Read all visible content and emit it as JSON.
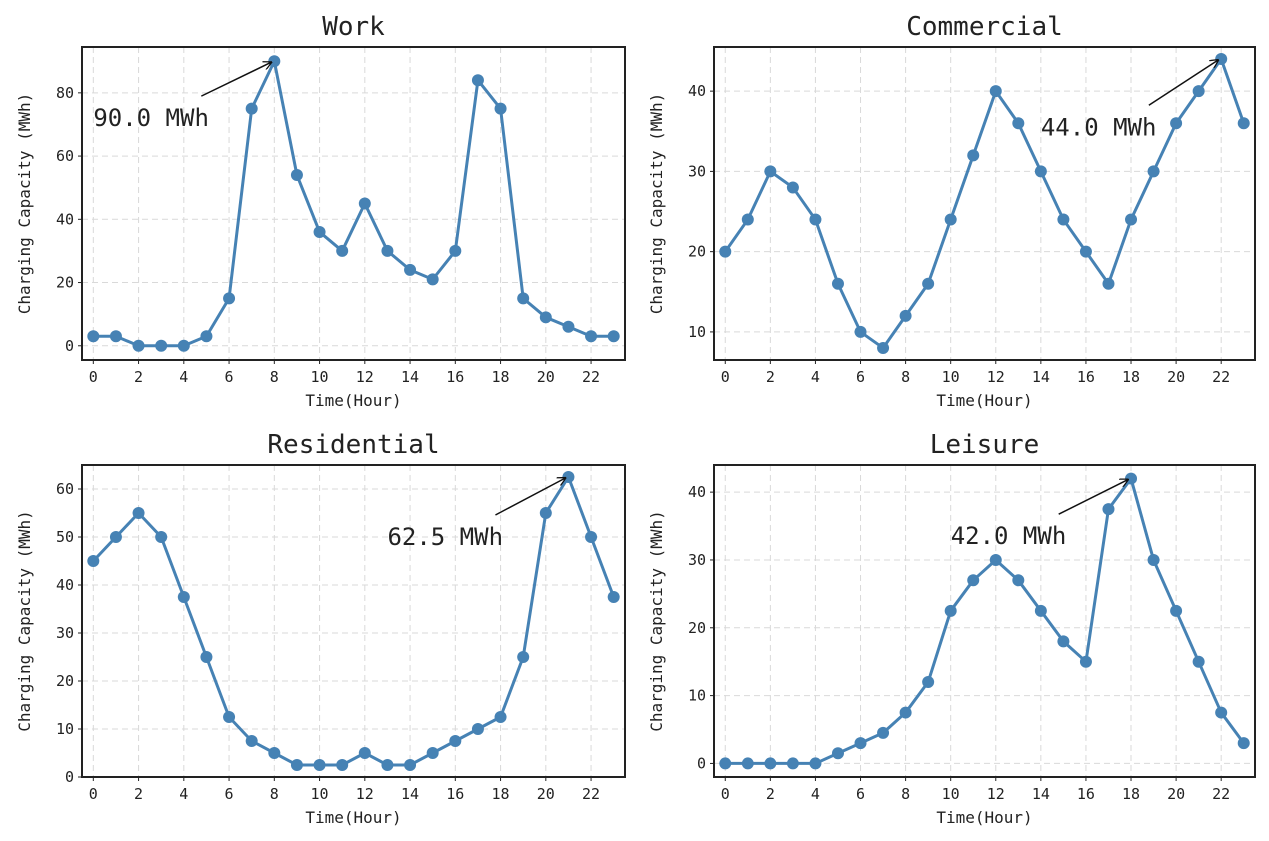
{
  "colors": {
    "line": "#4682b4",
    "frame": "#222222",
    "grid": "#d9d9d9",
    "text": "#222222"
  },
  "chart_data": [
    {
      "type": "line",
      "title": "Work",
      "xlabel": "Time(Hour)",
      "ylabel": "Charging Capacity (MWh)",
      "x": [
        0,
        1,
        2,
        3,
        4,
        5,
        6,
        7,
        8,
        9,
        10,
        11,
        12,
        13,
        14,
        15,
        16,
        17,
        18,
        19,
        20,
        21,
        22,
        23
      ],
      "values": [
        3,
        3,
        0,
        0,
        0,
        3,
        15,
        75,
        90,
        54,
        36,
        30,
        45,
        30,
        24,
        21,
        30,
        84,
        75,
        15,
        9,
        6,
        3,
        3
      ],
      "xlim": [
        -0.5,
        23.5
      ],
      "ylim": [
        -4.5,
        94.5
      ],
      "xticks": [
        "0",
        "2",
        "4",
        "6",
        "8",
        "10",
        "12",
        "14",
        "16",
        "18",
        "20",
        "22"
      ],
      "yticks": [
        "0",
        "20",
        "40",
        "60",
        "80"
      ],
      "grid": true,
      "annotation": {
        "text": "90.0 MWh",
        "point_x": 8,
        "point_y": 90,
        "text_x": 0,
        "text_y": 72
      }
    },
    {
      "type": "line",
      "title": "Commercial",
      "xlabel": "Time(Hour)",
      "ylabel": "Charging Capacity (MWh)",
      "x": [
        0,
        1,
        2,
        3,
        4,
        5,
        6,
        7,
        8,
        9,
        10,
        11,
        12,
        13,
        14,
        15,
        16,
        17,
        18,
        19,
        20,
        21,
        22,
        23
      ],
      "values": [
        20,
        24,
        30,
        28,
        24,
        16,
        10,
        8,
        12,
        16,
        24,
        32,
        40,
        36,
        30,
        24,
        20,
        16,
        24,
        30,
        36,
        40,
        44,
        36
      ],
      "xlim": [
        -0.5,
        23.5
      ],
      "ylim": [
        6.5,
        45.5
      ],
      "xticks": [
        "0",
        "2",
        "4",
        "6",
        "8",
        "10",
        "12",
        "14",
        "16",
        "18",
        "20",
        "22"
      ],
      "yticks": [
        "10",
        "20",
        "30",
        "40"
      ],
      "grid": true,
      "annotation": {
        "text": "44.0 MWh",
        "point_x": 22,
        "point_y": 44,
        "text_x": 14,
        "text_y": 35.5
      }
    },
    {
      "type": "line",
      "title": "Residential",
      "xlabel": "Time(Hour)",
      "ylabel": "Charging Capacity (MWh)",
      "x": [
        0,
        1,
        2,
        3,
        4,
        5,
        6,
        7,
        8,
        9,
        10,
        11,
        12,
        13,
        14,
        15,
        16,
        17,
        18,
        19,
        20,
        21,
        22,
        23
      ],
      "values": [
        45,
        50,
        55,
        50,
        37.5,
        25,
        12.5,
        7.5,
        5,
        2.5,
        2.5,
        2.5,
        5,
        2.5,
        2.5,
        5,
        7.5,
        10,
        12.5,
        25,
        55,
        62.5,
        50,
        37.5
      ],
      "xlim": [
        -0.5,
        23.5
      ],
      "ylim": [
        0,
        65
      ],
      "xticks": [
        "0",
        "2",
        "4",
        "6",
        "8",
        "10",
        "12",
        "14",
        "16",
        "18",
        "20",
        "22"
      ],
      "yticks": [
        "0",
        "10",
        "20",
        "30",
        "40",
        "50",
        "60"
      ],
      "grid": true,
      "annotation": {
        "text": "62.5 MWh",
        "point_x": 21,
        "point_y": 62.5,
        "text_x": 13,
        "text_y": 50
      }
    },
    {
      "type": "line",
      "title": "Leisure",
      "xlabel": "Time(Hour)",
      "ylabel": "Charging Capacity (MWh)",
      "x": [
        0,
        1,
        2,
        3,
        4,
        5,
        6,
        7,
        8,
        9,
        10,
        11,
        12,
        13,
        14,
        15,
        16,
        17,
        18,
        19,
        20,
        21,
        22,
        23
      ],
      "values": [
        0,
        0,
        0,
        0,
        0,
        1.5,
        3,
        4.5,
        7.5,
        12,
        22.5,
        27,
        30,
        27,
        22.5,
        18,
        15,
        37.5,
        42,
        30,
        22.5,
        15,
        7.5,
        3
      ],
      "xlim": [
        -0.5,
        23.5
      ],
      "ylim": [
        -2,
        44
      ],
      "xticks": [
        "0",
        "2",
        "4",
        "6",
        "8",
        "10",
        "12",
        "14",
        "16",
        "18",
        "20",
        "22"
      ],
      "yticks": [
        "0",
        "10",
        "20",
        "30",
        "40"
      ],
      "grid": true,
      "annotation": {
        "text": "42.0 MWh",
        "point_x": 18,
        "point_y": 42,
        "text_x": 10,
        "text_y": 33.5
      }
    }
  ]
}
